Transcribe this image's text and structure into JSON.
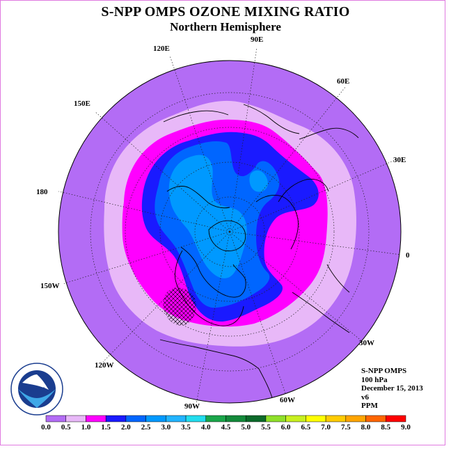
{
  "title": "S-NPP OMPS OZONE MIXING RATIO",
  "subtitle": "Northern Hemisphere",
  "longitude_labels": [
    "90E",
    "60E",
    "30E",
    "0",
    "30W",
    "60W",
    "90W",
    "120W",
    "150W",
    "180",
    "150E",
    "120E"
  ],
  "info": {
    "instrument": "S-NPP OMPS",
    "level": "100 hPa",
    "date": "December 15, 2013",
    "version": "v6",
    "units": "PPM"
  },
  "logo": {
    "text": "NOAA",
    "ring_text": "NATIONAL OCEANIC AND ATMOSPHERIC ADMINISTRATION · U.S. DEPARTMENT OF COMMERCE"
  },
  "colorbar": {
    "labels": [
      "0.0",
      "0.5",
      "1.0",
      "1.5",
      "2.0",
      "2.5",
      "3.0",
      "3.5",
      "4.0",
      "4.5",
      "5.0",
      "5.5",
      "6.0",
      "6.5",
      "7.0",
      "7.5",
      "8.0",
      "8.5",
      "9.0"
    ],
    "colors": [
      "#b36cf5",
      "#e8b8f8",
      "#ff00ff",
      "#1a1aff",
      "#0066ff",
      "#0099ff",
      "#22b4ff",
      "#22ddee",
      "#1aa64a",
      "#138a3a",
      "#0b6a2a",
      "#8fe02a",
      "#c8f020",
      "#ffff00",
      "#ffcc00",
      "#ffa500",
      "#ff6600",
      "#ff0000",
      "#8b5a3c"
    ]
  },
  "chart_data": {
    "type": "heatmap",
    "projection": "north-polar-stereographic",
    "variable": "ozone mixing ratio",
    "units": "PPM",
    "level": "100 hPa",
    "date": "December 15, 2013",
    "bins": [
      0.0,
      0.5,
      1.0,
      1.5,
      2.0,
      2.5,
      3.0,
      3.5,
      4.0,
      4.5,
      5.0,
      5.5,
      6.0,
      6.5,
      7.0,
      7.5,
      8.0,
      8.5,
      9.0
    ],
    "regions": [
      {
        "range": "0.0-0.5",
        "description": "outer band toward equator"
      },
      {
        "range": "0.5-1.0",
        "description": "ring at mid-latitudes"
      },
      {
        "range": "1.0-1.5",
        "description": "ring, extending over Europe"
      },
      {
        "range": "1.5-2.0",
        "description": "band around polar region"
      },
      {
        "range": "2.0-2.5",
        "description": "inner polar region"
      },
      {
        "range": "2.5-3.0",
        "description": "patches over Siberia / Alaska"
      }
    ]
  }
}
